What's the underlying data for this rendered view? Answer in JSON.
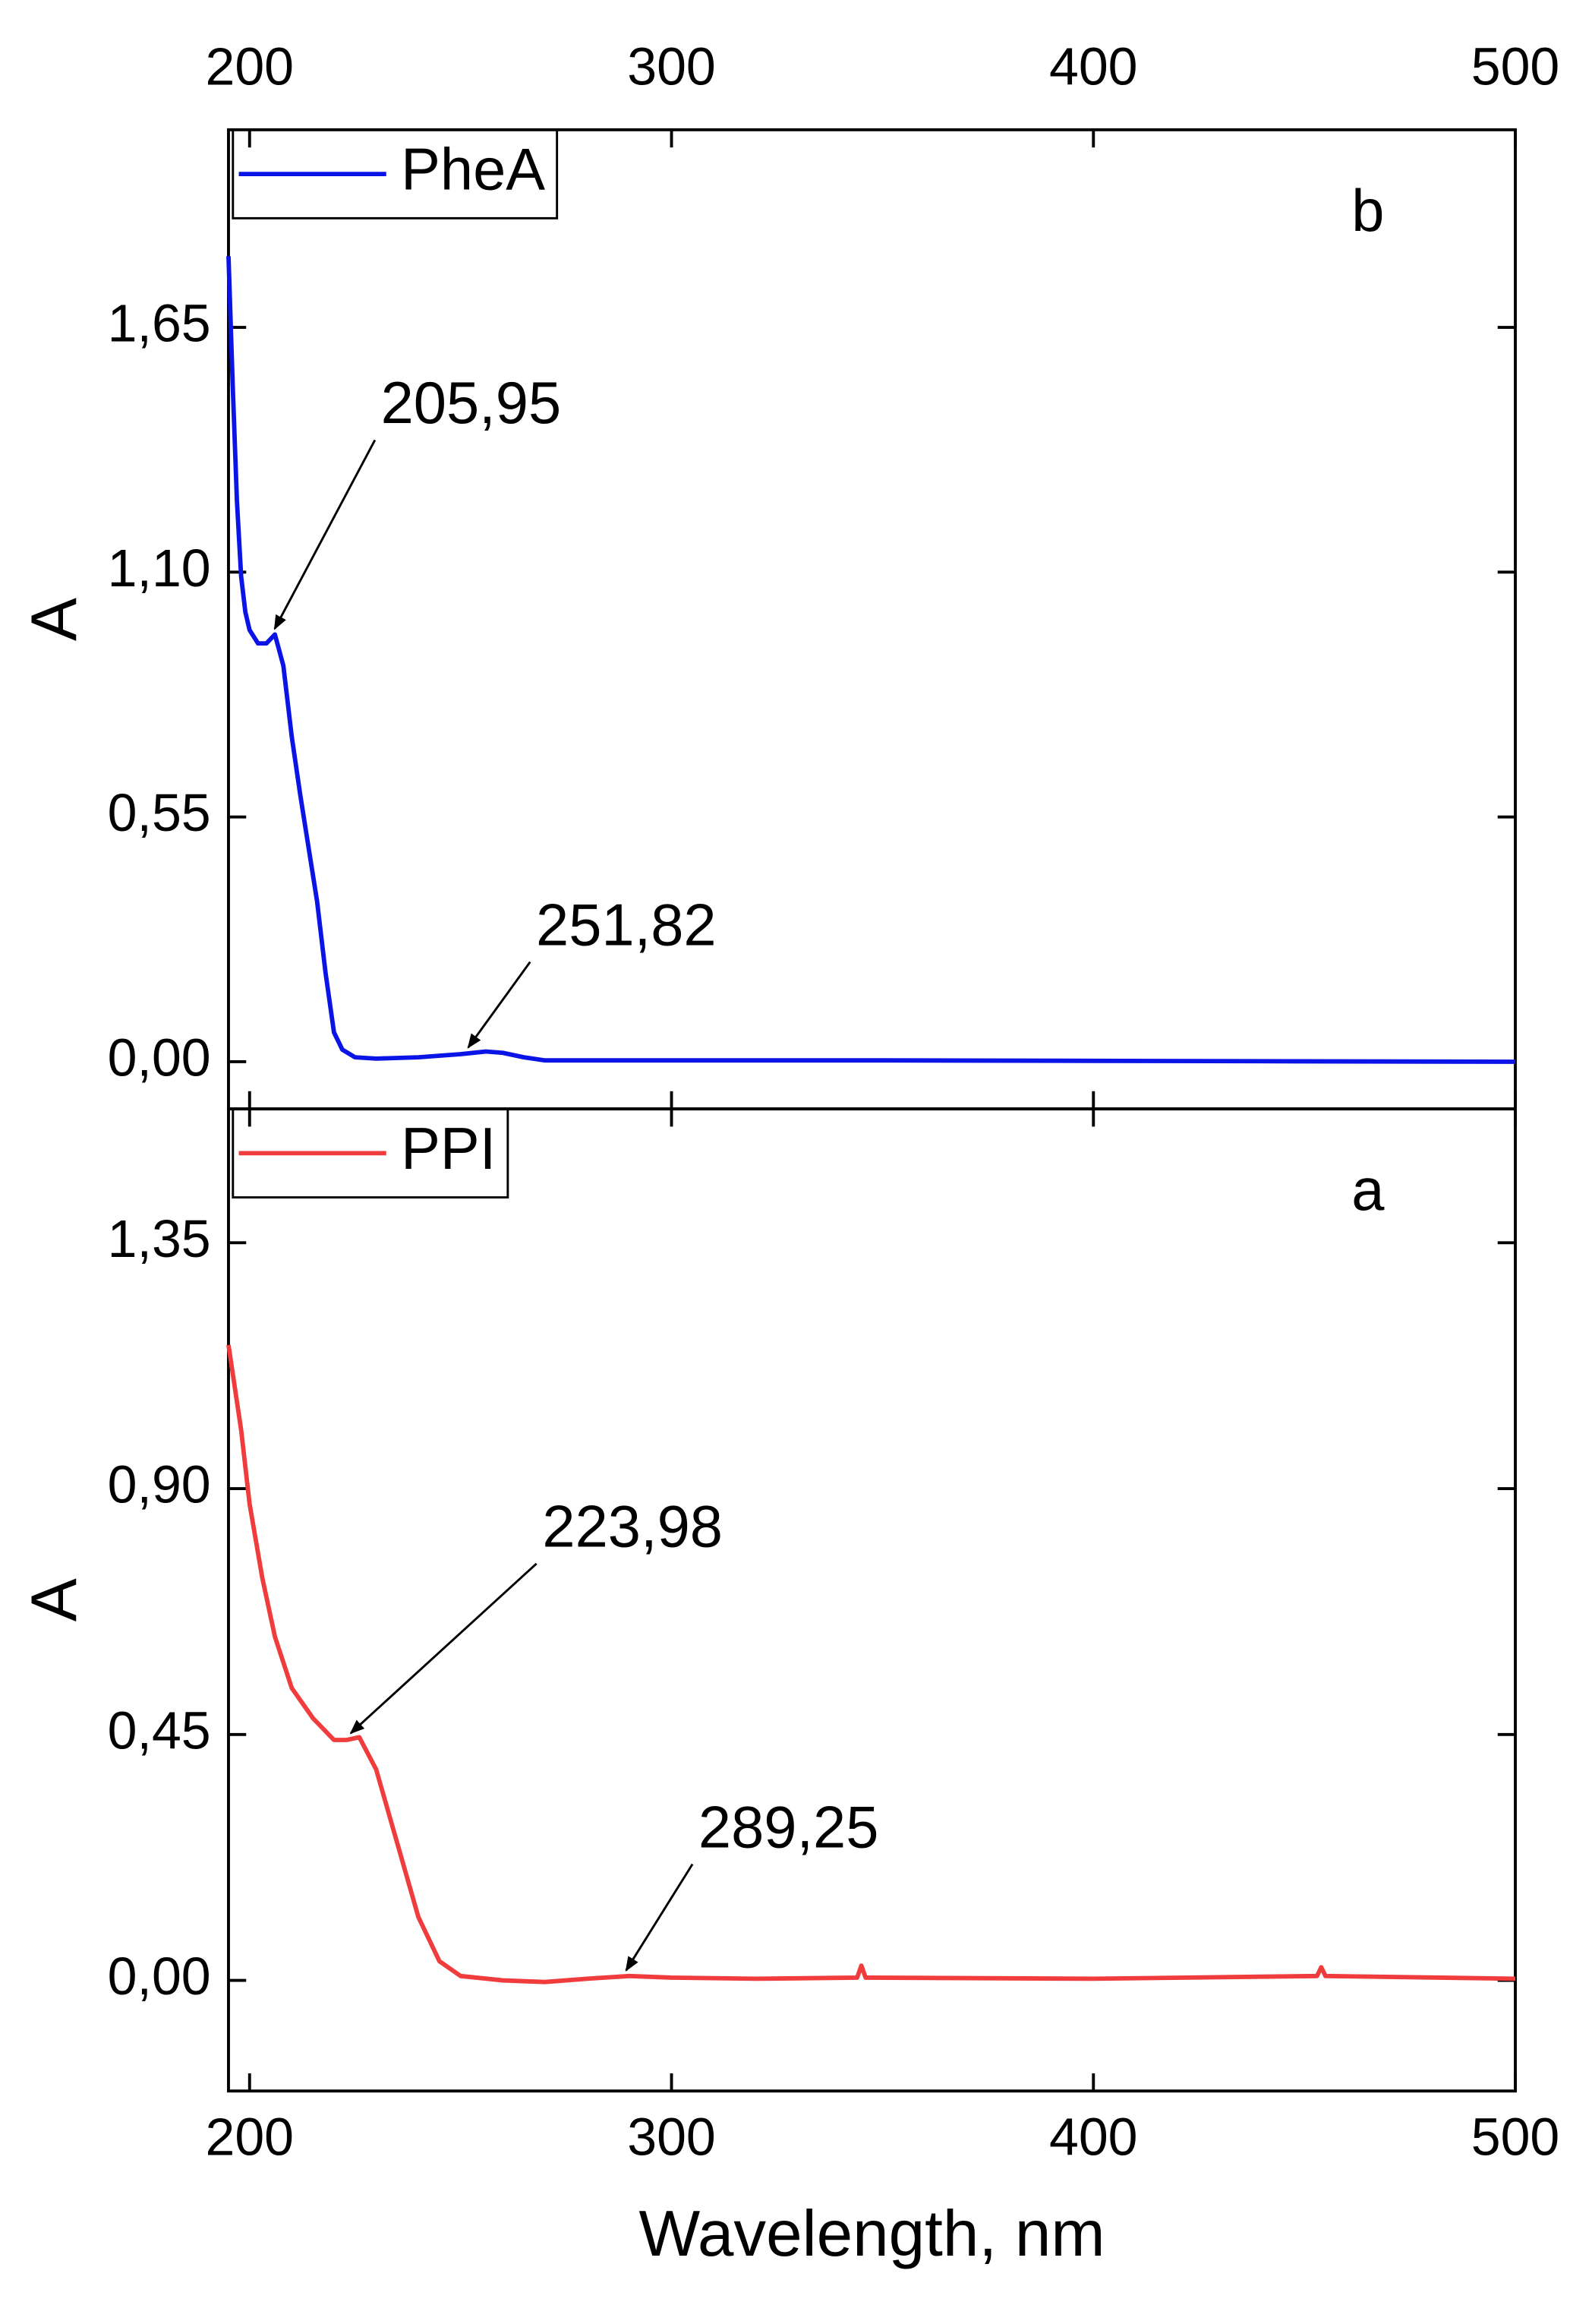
{
  "chart_data": [
    {
      "type": "line",
      "ylabel": "A",
      "panel_label": "b",
      "legend": "upper left",
      "xaxis_position": "top",
      "x": [
        195,
        196,
        197,
        198,
        199,
        200,
        202,
        204,
        206,
        208,
        210,
        212,
        214,
        216,
        218,
        220,
        222,
        225,
        230,
        240,
        250,
        256,
        260,
        265,
        270,
        300,
        350,
        400,
        450,
        500
      ],
      "series": [
        {
          "name": "PheA",
          "color": "#0a14e6",
          "values": [
            1.81,
            1.52,
            1.26,
            1.09,
            1.01,
            0.97,
            0.94,
            0.94,
            0.96,
            0.89,
            0.73,
            0.6,
            0.48,
            0.36,
            0.2,
            0.066,
            0.027,
            0.01,
            0.007,
            0.01,
            0.017,
            0.023,
            0.02,
            0.01,
            0.003,
            0.003,
            0.003,
            0.002,
            0.001,
            0
          ]
        }
      ],
      "xlim": [
        195,
        500
      ],
      "xticks": [
        200,
        300,
        400,
        500
      ],
      "ylim": [
        -0.106,
        2.094
      ],
      "yticks": [
        {
          "value": 0,
          "label": "0,00"
        },
        {
          "value": 0.55,
          "label": "0,55"
        },
        {
          "value": 1.1,
          "label": "1,10"
        },
        {
          "value": 1.65,
          "label": "1,65"
        }
      ],
      "annotations": [
        {
          "value": 205.95,
          "label": "205,95"
        },
        {
          "value": 251.82,
          "label": "251,82"
        }
      ]
    },
    {
      "type": "line",
      "ylabel": "A",
      "xlabel": "Wavelength, nm",
      "panel_label": "a",
      "legend": "upper left",
      "xaxis_position": "bottom",
      "x": [
        195,
        198,
        200,
        203,
        206,
        210,
        215,
        220,
        223,
        226,
        230,
        235,
        240,
        245,
        250,
        260,
        270,
        280,
        290,
        300,
        320,
        344,
        345,
        346,
        400,
        453,
        454,
        455,
        500
      ],
      "series": [
        {
          "name": "PPI",
          "color": "#f03c3c",
          "values": [
            1.163,
            1.007,
            0.872,
            0.737,
            0.629,
            0.535,
            0.48,
            0.44,
            0.44,
            0.445,
            0.386,
            0.251,
            0.116,
            0.035,
            0.008,
            0,
            -0.003,
            0.003,
            0.008,
            0.005,
            0.003,
            0.005,
            0.027,
            0.005,
            0.003,
            0.008,
            0.024,
            0.008,
            0.003
          ]
        }
      ],
      "xlim": [
        195,
        500
      ],
      "xticks": [
        200,
        300,
        400,
        500
      ],
      "ylim": [
        -0.2025,
        1.595
      ],
      "yticks": [
        {
          "value": 0,
          "label": "0,00"
        },
        {
          "value": 0.45,
          "label": "0,45"
        },
        {
          "value": 0.9,
          "label": "0,90"
        },
        {
          "value": 1.35,
          "label": "1,35"
        }
      ],
      "annotations": [
        {
          "value": 223.98,
          "label": "223,98"
        },
        {
          "value": 289.25,
          "label": "289,25"
        }
      ]
    }
  ]
}
